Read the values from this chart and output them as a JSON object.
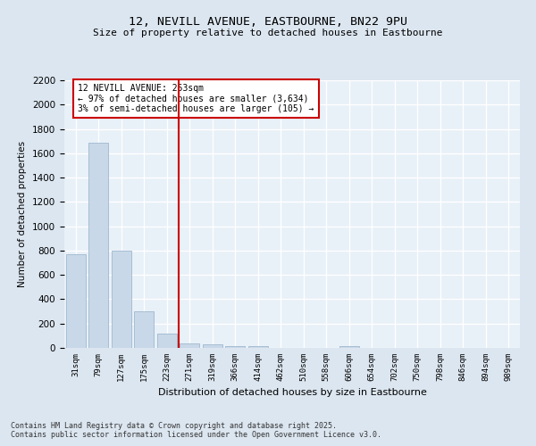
{
  "title_line1": "12, NEVILL AVENUE, EASTBOURNE, BN22 9PU",
  "title_line2": "Size of property relative to detached houses in Eastbourne",
  "xlabel": "Distribution of detached houses by size in Eastbourne",
  "ylabel": "Number of detached properties",
  "categories": [
    "31sqm",
    "79sqm",
    "127sqm",
    "175sqm",
    "223sqm",
    "271sqm",
    "319sqm",
    "366sqm",
    "414sqm",
    "462sqm",
    "510sqm",
    "558sqm",
    "606sqm",
    "654sqm",
    "702sqm",
    "750sqm",
    "798sqm",
    "846sqm",
    "894sqm",
    "989sqm"
  ],
  "values": [
    770,
    1690,
    800,
    300,
    115,
    40,
    32,
    18,
    12,
    0,
    0,
    0,
    15,
    0,
    0,
    0,
    0,
    0,
    0,
    0
  ],
  "bar_color": "#c8d8e8",
  "bar_edge_color": "#a0b8cf",
  "vline_x": 4.5,
  "vline_color": "#cc0000",
  "annotation_text": "12 NEVILL AVENUE: 253sqm\n← 97% of detached houses are smaller (3,634)\n3% of semi-detached houses are larger (105) →",
  "annotation_box_color": "#ffffff",
  "annotation_box_edge_color": "#cc0000",
  "ylim": [
    0,
    2200
  ],
  "yticks": [
    0,
    200,
    400,
    600,
    800,
    1000,
    1200,
    1400,
    1600,
    1800,
    2000,
    2200
  ],
  "background_color": "#dce6f0",
  "plot_bg_color": "#e8f0f8",
  "grid_color": "#ffffff",
  "footnote": "Contains HM Land Registry data © Crown copyright and database right 2025.\nContains public sector information licensed under the Open Government Licence v3.0."
}
